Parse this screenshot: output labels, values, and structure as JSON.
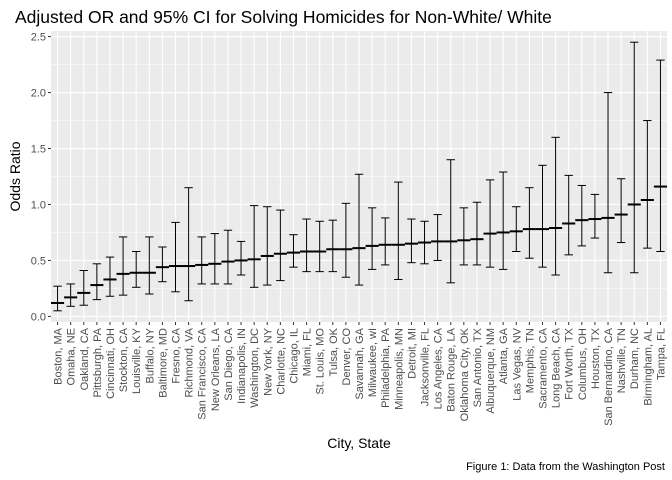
{
  "chart_data": {
    "type": "errorbar",
    "title": "Adjusted OR and 95% CI for Solving Homicides for Non-White/ White",
    "xlabel": "City, State",
    "ylabel": "Odds Ratio",
    "caption": "Figure 1: Data from the Washington Post",
    "ylim": [
      -0.05,
      2.55
    ],
    "yticks": [
      "0.0",
      "0.5",
      "1.0",
      "1.5",
      "2.0",
      "2.5"
    ],
    "grid": true,
    "panel_background": "#ebebeb",
    "grid_color": "#ffffff",
    "mark_color": "#000000",
    "categories": [
      "Boston, MA",
      "Omaha, NE",
      "Oakland, CA",
      "Pittsburgh, PA",
      "Cincinnati, OH",
      "Stockton, CA",
      "Louisville, KY",
      "Buffalo, NY",
      "Baltimore, MD",
      "Fresno, CA",
      "Richmond, VA",
      "San Francisco, CA",
      "New Orleans, LA",
      "San Diego, CA",
      "Indianapolis, IN",
      "Washington, DC",
      "New York, NY",
      "Charlotte, NC",
      "Chicago, IL",
      "Miami, FL",
      "St. Louis, MO",
      "Tulsa, OK",
      "Denver, CO",
      "Savannah, GA",
      "Milwaukee, wI",
      "Philadelphia, PA",
      "Minneapolis, MN",
      "Detroit, MI",
      "Jacksonville, FL",
      "Los Angeles, CA",
      "Baton Rouge, LA",
      "Oklahoma City, OK",
      "San Antonio, TX",
      "Albuquerque, NM",
      "Atlanta, GA",
      "Las Vegas, NV",
      "Memphis, TN",
      "Sacramento, CA",
      "Long Beach, CA",
      "Fort Worth, TX",
      "Columbus, OH",
      "Houston, TX",
      "San Bernardino, CA",
      "Nashville, TN",
      "Durham, NC",
      "Birmingham, AL",
      "Tampa, FL"
    ],
    "or": [
      0.12,
      0.17,
      0.21,
      0.28,
      0.33,
      0.38,
      0.39,
      0.39,
      0.44,
      0.45,
      0.45,
      0.46,
      0.47,
      0.49,
      0.5,
      0.51,
      0.54,
      0.56,
      0.57,
      0.58,
      0.58,
      0.6,
      0.6,
      0.61,
      0.63,
      0.64,
      0.64,
      0.65,
      0.66,
      0.67,
      0.67,
      0.68,
      0.69,
      0.74,
      0.75,
      0.76,
      0.78,
      0.78,
      0.79,
      0.83,
      0.86,
      0.87,
      0.88,
      0.91,
      1.0,
      1.04,
      1.16
    ],
    "lower": [
      0.05,
      0.09,
      0.1,
      0.15,
      0.18,
      0.19,
      0.26,
      0.2,
      0.31,
      0.22,
      0.14,
      0.29,
      0.29,
      0.29,
      0.37,
      0.26,
      0.28,
      0.32,
      0.44,
      0.4,
      0.4,
      0.4,
      0.35,
      0.28,
      0.42,
      0.46,
      0.33,
      0.48,
      0.47,
      0.5,
      0.3,
      0.46,
      0.46,
      0.44,
      0.42,
      0.58,
      0.52,
      0.44,
      0.37,
      0.55,
      0.63,
      0.7,
      0.39,
      0.66,
      0.39,
      0.61,
      0.58
    ],
    "upper": [
      0.27,
      0.29,
      0.41,
      0.47,
      0.53,
      0.71,
      0.58,
      0.71,
      0.62,
      0.84,
      1.15,
      0.71,
      0.74,
      0.77,
      0.67,
      0.99,
      0.98,
      0.95,
      0.73,
      0.87,
      0.85,
      0.86,
      1.01,
      1.27,
      0.97,
      0.88,
      1.2,
      0.87,
      0.85,
      0.91,
      1.4,
      0.97,
      1.02,
      1.22,
      1.29,
      0.98,
      1.15,
      1.35,
      1.6,
      1.26,
      1.17,
      1.09,
      2.0,
      1.23,
      2.45,
      1.75,
      2.29
    ]
  }
}
